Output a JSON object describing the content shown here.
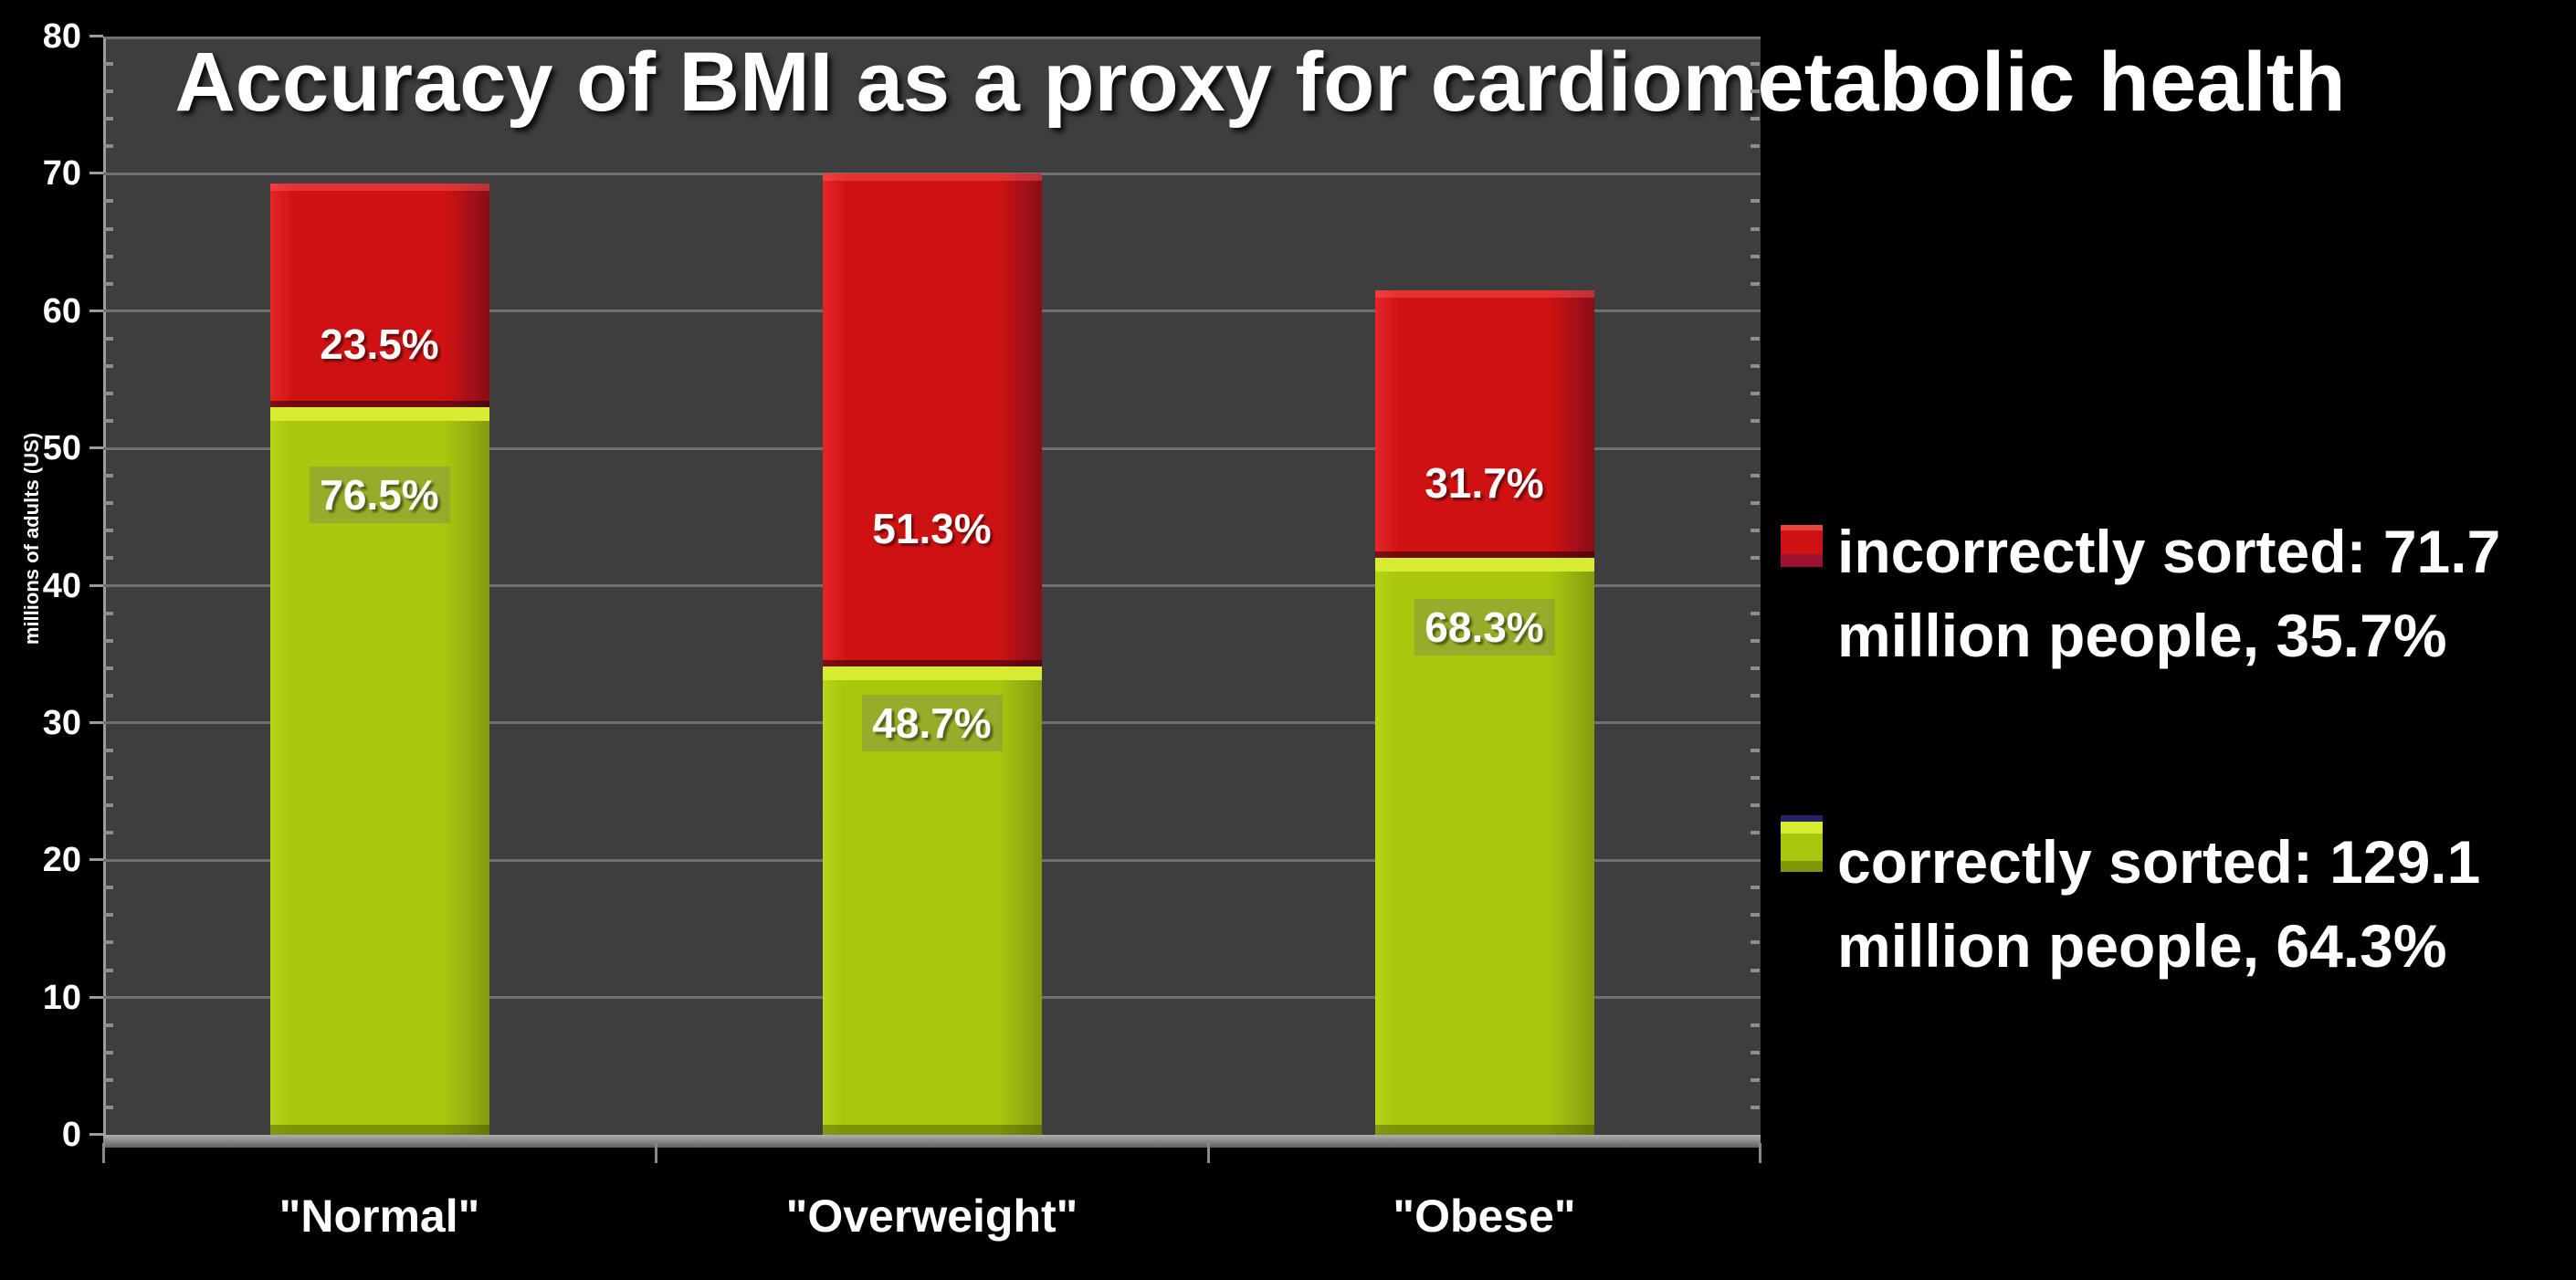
{
  "chart_data": {
    "type": "bar",
    "stacked": true,
    "title": "Accuracy of BMI as a proxy for cardiometabolic health",
    "ylabel": "millions of adults (US)",
    "xlabel": "",
    "ylim": [
      0,
      80
    ],
    "yticks": [
      0,
      10,
      20,
      30,
      40,
      50,
      60,
      70,
      80
    ],
    "minor_tick_step": 2,
    "grid": true,
    "plot_background": "#3e3e3e",
    "page_background": "#000000",
    "categories": [
      "\"Normal\"",
      "\"Overweight\"",
      "\"Obese\""
    ],
    "series": [
      {
        "name": "correctly sorted",
        "color": "#a9c70e",
        "values": [
          53.0,
          34.1,
          42.0
        ],
        "segment_labels": [
          "76.5%",
          "48.7%",
          "68.3%"
        ]
      },
      {
        "name": "incorrectly sorted",
        "color": "#ce1212",
        "values": [
          16.3,
          35.9,
          19.5
        ],
        "segment_labels": [
          "23.5%",
          "51.3%",
          "31.7%"
        ]
      }
    ],
    "bar_totals": [
      69.3,
      70.0,
      61.5
    ],
    "legend": {
      "position": "right-outside",
      "entries": [
        {
          "series": "incorrectly sorted",
          "color": "#ce1212",
          "line1": "incorrectly sorted: 71.7",
          "line2": "million people, 35.7%"
        },
        {
          "series": "correctly sorted",
          "color": "#a9c70e",
          "line1": "correctly sorted: 129.1",
          "line2": "million people, 64.3%"
        }
      ]
    }
  }
}
